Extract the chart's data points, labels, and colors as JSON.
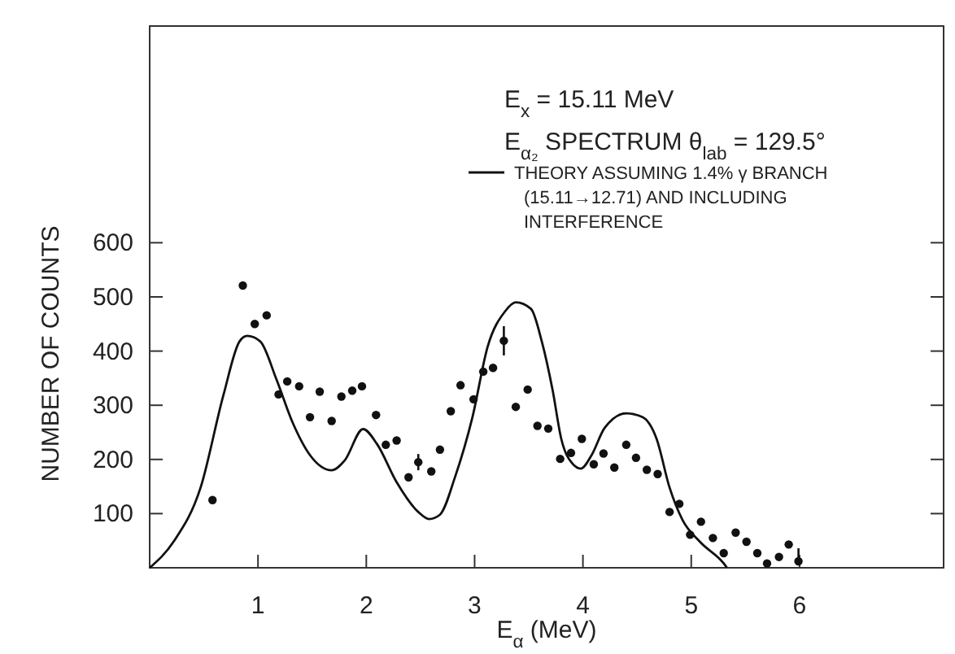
{
  "chart_data": {
    "type": "scatter",
    "title": "E$_{x}$ = 15.11 MeV",
    "subtitle": "E$_{α₂}$ SPECTRUM  θ$_{lab}$ = 129.5°",
    "xlabel": "E$_{α}$ (MeV)",
    "ylabel": "NUMBER OF COUNTS",
    "xlim": [
      0,
      7.33
    ],
    "ylim": [
      0,
      1000
    ],
    "xticks": [
      1,
      2,
      3,
      4,
      5,
      6
    ],
    "yticks": [
      100,
      200,
      300,
      400,
      500,
      600
    ],
    "legend": "top right",
    "grid": false,
    "series": [
      {
        "color": "#111111",
        "marker": "circle",
        "x": [
          0.58,
          0.86,
          0.97,
          1.08,
          1.19,
          1.27,
          1.38,
          1.48,
          1.57,
          1.68,
          1.77,
          1.87,
          1.96,
          2.09,
          2.18,
          2.28,
          2.39,
          2.48,
          2.6,
          2.68,
          2.78,
          2.87,
          2.99,
          3.08,
          3.17,
          3.27,
          3.38,
          3.49,
          3.58,
          3.68,
          3.79,
          3.89,
          3.99,
          4.1,
          4.19,
          4.29,
          4.4,
          4.49,
          4.59,
          4.69,
          4.8,
          4.89,
          4.99,
          5.09,
          5.2,
          5.3,
          5.41,
          5.51,
          5.61,
          5.7,
          5.81,
          5.9,
          5.99
        ],
        "values": [
          125,
          521,
          450,
          466,
          320,
          344,
          335,
          278,
          325,
          271,
          316,
          327,
          335,
          282,
          227,
          235,
          167,
          195,
          178,
          218,
          289,
          337,
          311,
          362,
          369,
          419,
          297,
          329,
          262,
          257,
          201,
          212,
          238,
          191,
          211,
          185,
          227,
          203,
          181,
          173,
          103,
          118,
          61,
          85,
          55,
          27,
          65,
          48,
          27,
          8,
          20,
          43,
          12
        ],
        "errors": [
          null,
          null,
          null,
          null,
          null,
          null,
          null,
          null,
          null,
          null,
          null,
          null,
          null,
          null,
          null,
          null,
          null,
          15,
          null,
          null,
          null,
          null,
          null,
          null,
          null,
          27,
          null,
          null,
          null,
          null,
          null,
          null,
          null,
          null,
          null,
          null,
          null,
          null,
          null,
          null,
          null,
          null,
          null,
          null,
          null,
          null,
          null,
          null,
          null,
          null,
          null,
          null,
          [
            12,
            36
          ]
        ]
      },
      {
        "type": "line",
        "name": "THEORY ASSUMING 1.4% γ BRANCH (15.11→12.71) AND INCLUDING INTERFERENCE",
        "color": "#111111",
        "line_style": "solid",
        "marker": "none",
        "x": [
          0,
          0.22,
          0.47,
          0.68,
          0.83,
          0.9,
          1.02,
          1.17,
          1.32,
          1.48,
          1.68,
          1.8,
          1.97,
          2.1,
          2.28,
          2.48,
          2.58,
          2.68,
          2.82,
          2.98,
          3.12,
          3.28,
          3.38,
          3.52,
          3.62,
          3.72,
          3.8,
          3.9,
          3.98,
          4.08,
          4.2,
          4.4,
          4.55,
          4.68,
          4.8,
          4.92,
          5.08,
          5.3,
          5.33
        ],
        "values": [
          0,
          48,
          148,
          318,
          418,
          428,
          418,
          348,
          268,
          208,
          180,
          198,
          256,
          228,
          158,
          103,
          90,
          98,
          168,
          278,
          408,
          473,
          490,
          478,
          418,
          328,
          238,
          193,
          183,
          208,
          258,
          285,
          278,
          238,
          148,
          88,
          48,
          8,
          0
        ]
      }
    ]
  }
}
